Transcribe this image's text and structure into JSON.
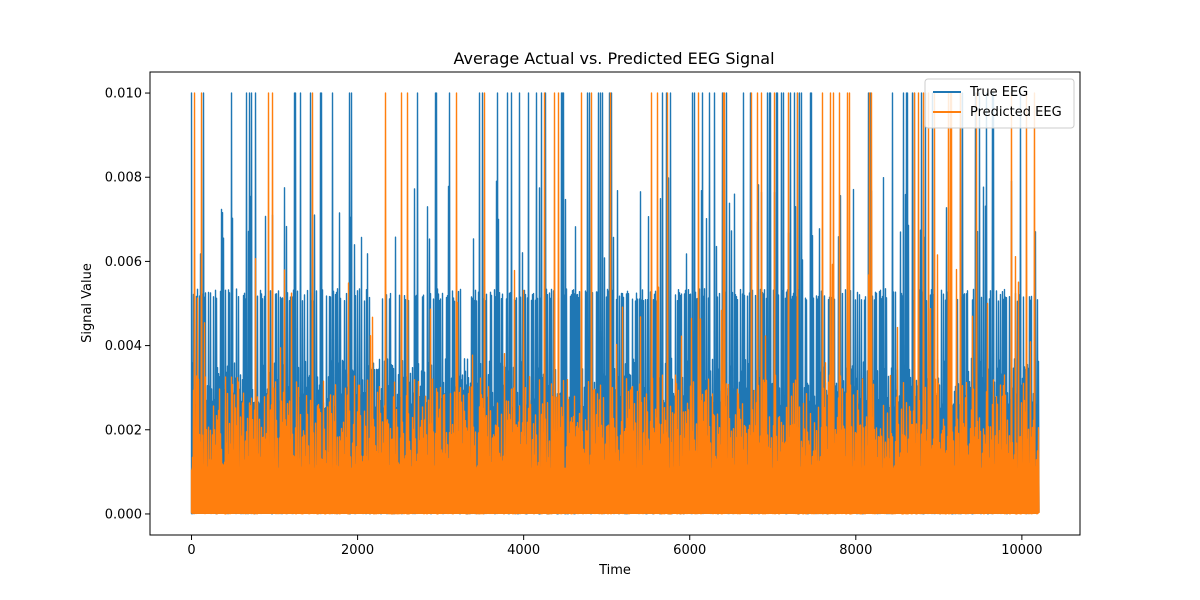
{
  "chart_data": {
    "type": "line",
    "title": "Average Actual vs. Predicted EEG Signal",
    "xlabel": "Time",
    "ylabel": "Signal Value",
    "xlim": [
      -500,
      10700
    ],
    "ylim": [
      -0.0005,
      0.0105
    ],
    "xticks": [
      0,
      2000,
      4000,
      6000,
      8000,
      10000
    ],
    "xtick_labels": [
      "0",
      "2000",
      "4000",
      "6000",
      "8000",
      "10000"
    ],
    "yticks": [
      0,
      0.002,
      0.004,
      0.006,
      0.008,
      0.01
    ],
    "ytick_labels": [
      "0.000",
      "0.002",
      "0.004",
      "0.006",
      "0.008",
      "0.010"
    ],
    "grid": false,
    "legend_position": "top-right",
    "n_points": 10200,
    "series": [
      {
        "name": "True EEG",
        "color": "#1f77b4",
        "baseline_range": [
          0.0,
          0.0015
        ],
        "typical_peaks": [
          0.0025,
          0.0052
        ],
        "max_value": 0.01,
        "x_range": [
          0,
          10200
        ]
      },
      {
        "name": "Predicted EEG",
        "color": "#ff7f0e",
        "baseline_range": [
          0.0,
          0.001
        ],
        "typical_peaks": [
          0.0015,
          0.003
        ],
        "max_value": 0.01,
        "x_range": [
          0,
          10200
        ]
      }
    ]
  }
}
